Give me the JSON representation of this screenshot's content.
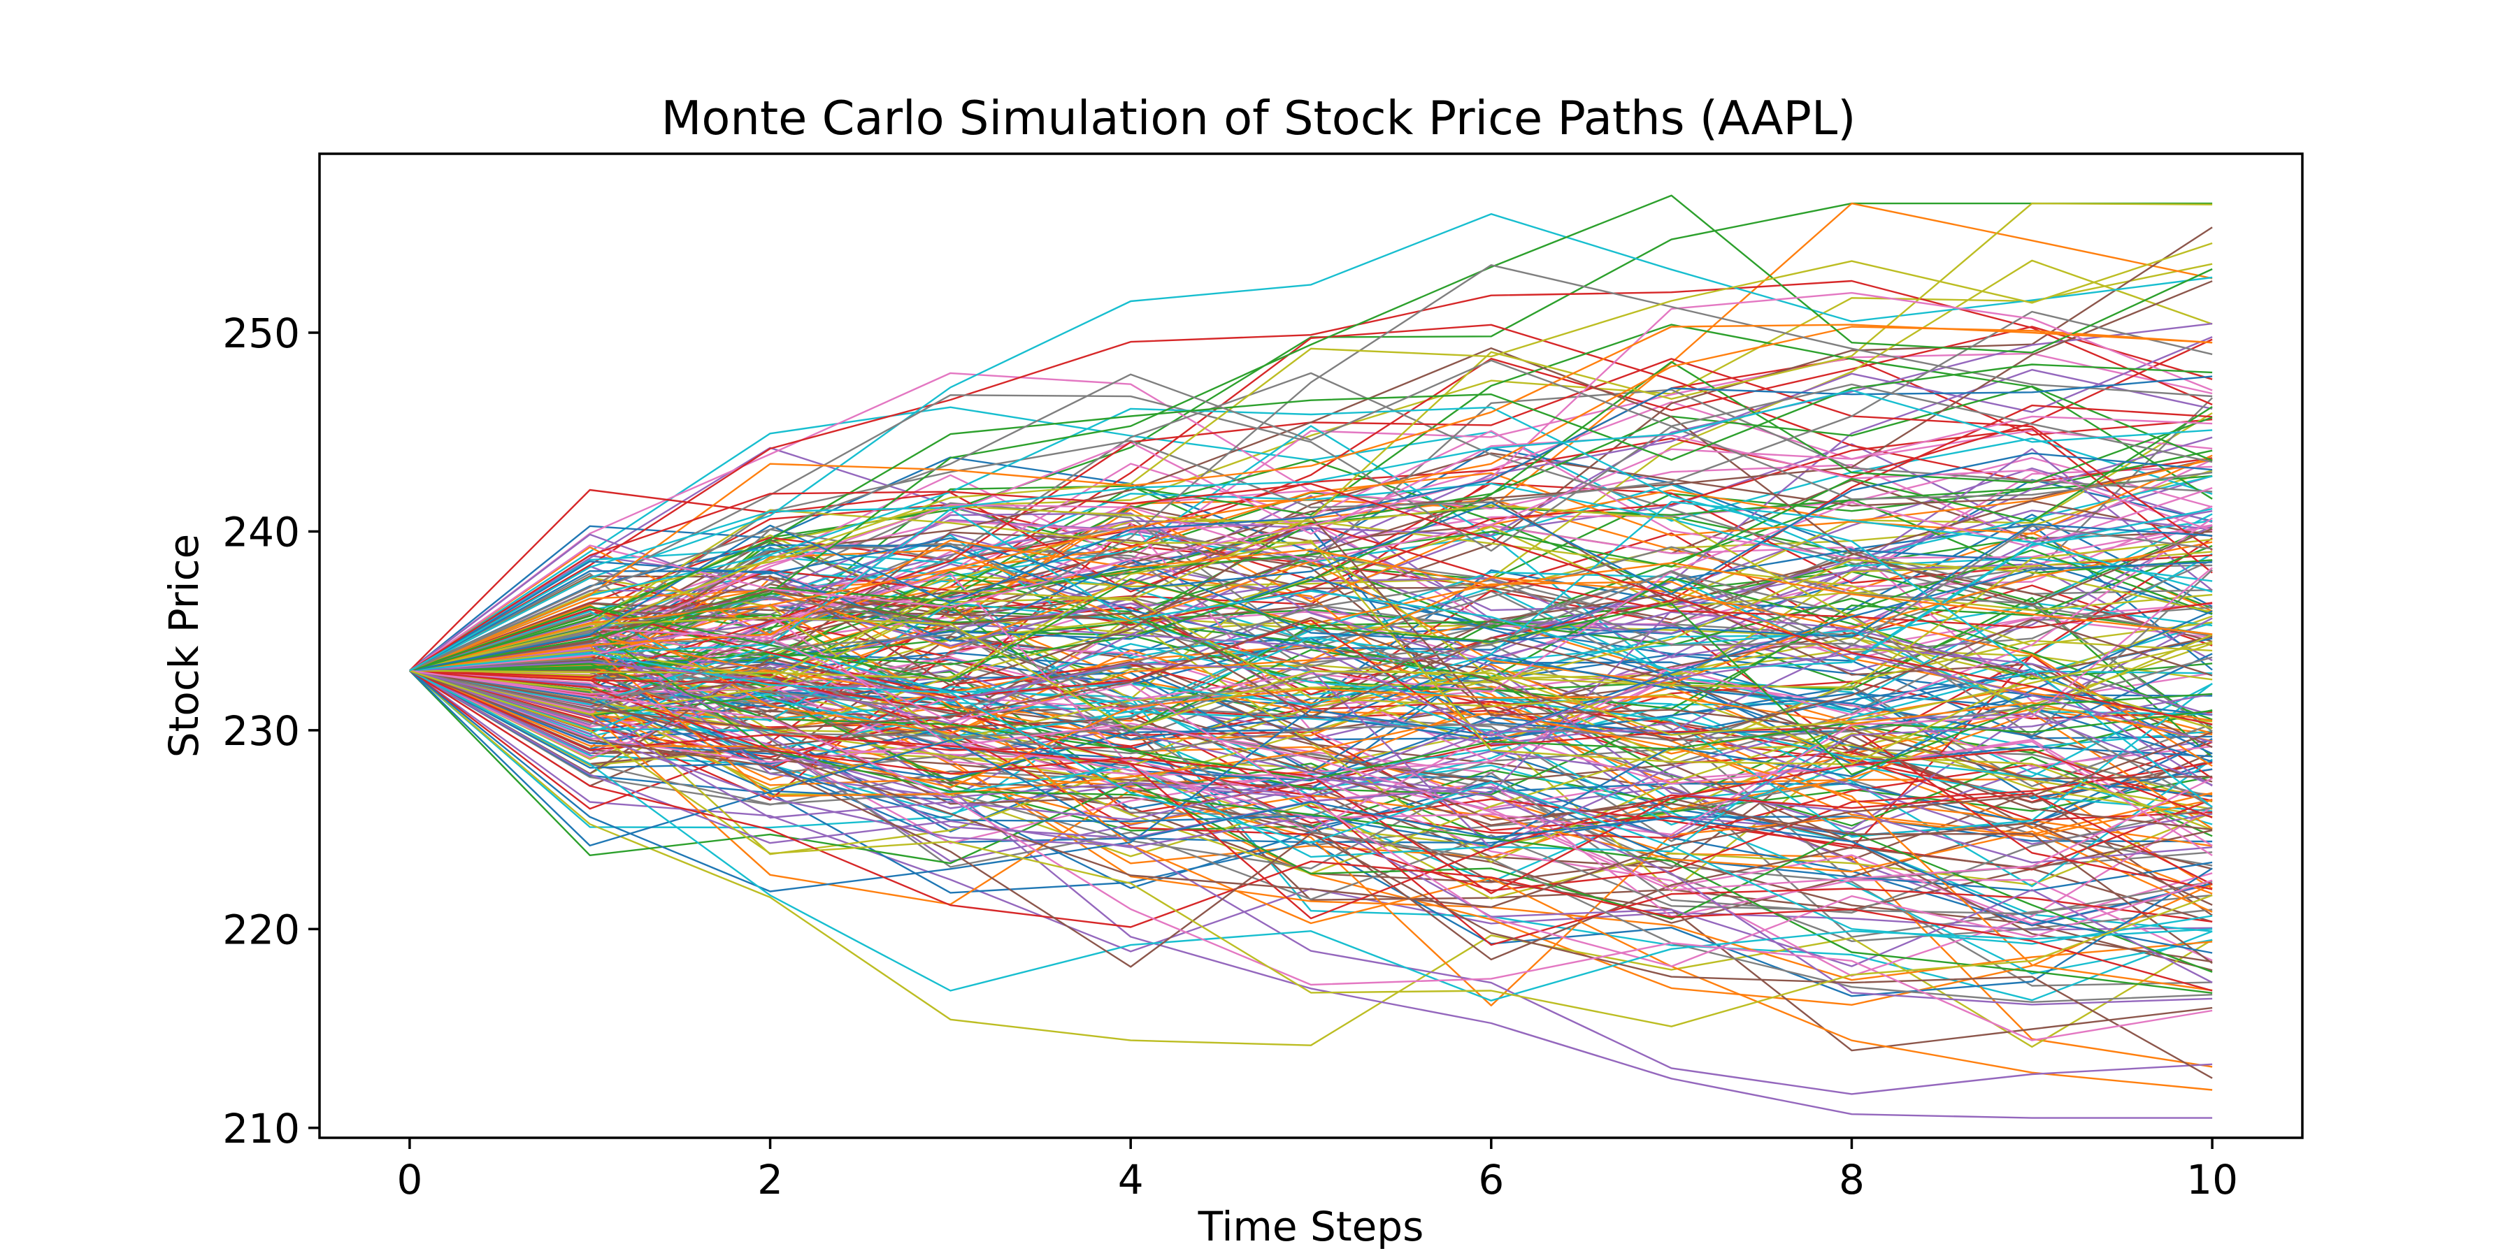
{
  "chart_data": {
    "type": "line",
    "title": "Monte Carlo Simulation of Stock Price Paths (AAPL)",
    "xlabel": "Time Steps",
    "ylabel": "Stock Price",
    "xlim": [
      -0.5,
      10.5
    ],
    "ylim": [
      209.5,
      259.0
    ],
    "x": [
      0,
      1,
      2,
      3,
      4,
      5,
      6,
      7,
      8,
      9,
      10
    ],
    "xticks": [
      0,
      2,
      4,
      6,
      8,
      10
    ],
    "yticks": [
      210,
      220,
      230,
      240,
      250
    ],
    "grid": false,
    "legend": "none",
    "start_value": 233.0,
    "num_paths": 260,
    "palette": [
      "#1f77b4",
      "#ff7f0e",
      "#2ca02c",
      "#d62728",
      "#9467bd",
      "#8c564b",
      "#e377c2",
      "#7f7f7f",
      "#bcbd22",
      "#17becf"
    ],
    "series": [
      {
        "values": [
          233.0,
          224.2,
          226.9,
          229.5,
          224.5,
          226.4,
          224.6,
          225.6,
          224.4,
          220.5,
          218.8
        ]
      },
      {
        "values": [
          233.0,
          235.4,
          236.3,
          238.1,
          240.2,
          241.7,
          243.4,
          248.3,
          250.3,
          250.1,
          249.5
        ]
      },
      {
        "values": [
          233.0,
          234.6,
          236.9,
          243.7,
          245.3,
          249.4,
          253.3,
          256.9,
          249.5,
          249.0,
          253.2
        ]
      },
      {
        "values": [
          233.0,
          227.2,
          225.0,
          221.2,
          220.1,
          223.4,
          222.6,
          220.6,
          221.0,
          219.4,
          216.9
        ]
      },
      {
        "values": [
          233.0,
          229.8,
          226.6,
          224.6,
          224.2,
          218.9,
          217.3,
          213.0,
          211.7,
          212.7,
          213.2
        ]
      },
      {
        "values": [
          233.0,
          231.4,
          228.9,
          225.8,
          222.7,
          222.0,
          221.1,
          224.2,
          225.9,
          226.7,
          229.9
        ]
      },
      {
        "values": [
          233.0,
          239.3,
          237.1,
          236.2,
          238.6,
          240.3,
          242.7,
          251.2,
          252.0,
          250.7,
          247.1
        ]
      },
      {
        "values": [
          233.0,
          231.0,
          234.1,
          234.8,
          239.7,
          247.5,
          253.4,
          251.3,
          249.2,
          247.4,
          246.8
        ]
      },
      {
        "values": [
          233.0,
          235.1,
          238.6,
          241.7,
          242.4,
          249.2,
          248.8,
          251.6,
          253.6,
          251.5,
          254.5
        ]
      },
      {
        "values": [
          233.0,
          228.3,
          221.7,
          216.9,
          219.2,
          219.9,
          216.4,
          219.0,
          219.9,
          219.5,
          220.0
        ]
      },
      {
        "values": [
          233.0,
          234.8,
          240.3,
          236.4,
          240.1,
          240.7,
          242.6,
          247.2,
          246.9,
          247.0,
          247.8
        ]
      },
      {
        "values": [
          233.0,
          236.8,
          243.4,
          243.1,
          242.3,
          243.3,
          246.0,
          250.3,
          250.4,
          250.0,
          249.5
        ]
      },
      {
        "values": [
          233.0,
          235.6,
          239.6,
          244.9,
          245.8,
          246.6,
          246.9,
          243.6,
          247.2,
          248.4,
          248.0
        ]
      },
      {
        "values": [
          233.0,
          238.8,
          241.9,
          242.0,
          241.4,
          242.4,
          239.6,
          236.7,
          233.9,
          232.2,
          230.3
        ]
      },
      {
        "values": [
          233.0,
          230.7,
          225.6,
          226.4,
          225.5,
          227.6,
          226.7,
          222.8,
          216.8,
          216.2,
          216.5
        ]
      },
      {
        "values": [
          233.0,
          229.5,
          228.2,
          223.9,
          218.1,
          224.8,
          219.8,
          217.6,
          217.3,
          217.6,
          212.5
        ]
      },
      {
        "values": [
          233.0,
          231.7,
          230.6,
          226.6,
          221.0,
          217.2,
          217.5,
          219.3,
          218.4,
          214.4,
          215.9
        ]
      },
      {
        "values": [
          233.0,
          237.0,
          240.1,
          243.4,
          247.9,
          244.6,
          248.6,
          245.3,
          247.4,
          245.4,
          243.5
        ]
      },
      {
        "values": [
          233.0,
          230.0,
          223.8,
          224.4,
          222.3,
          216.8,
          216.9,
          215.1,
          217.7,
          218.4,
          221.7
        ]
      },
      {
        "values": [
          233.0,
          238.2,
          241.0,
          241.2,
          242.2,
          242.5,
          244.2,
          244.9,
          247.1,
          244.5,
          245.1
        ]
      }
    ]
  }
}
